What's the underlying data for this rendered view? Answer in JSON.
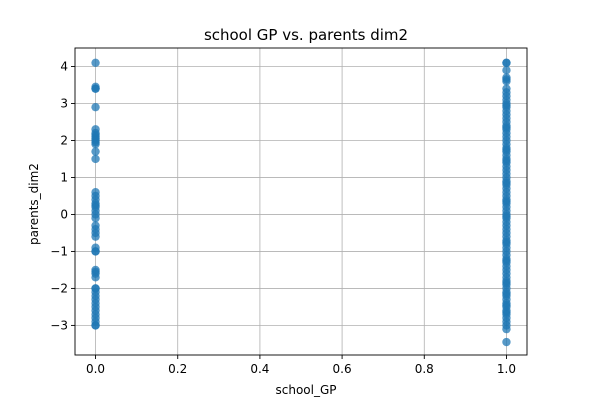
{
  "chart_data": {
    "type": "scatter",
    "title": "school GP vs. parents dim2",
    "xlabel": "school_GP",
    "ylabel": "parents_dim2",
    "xlim": [
      -0.05,
      1.05
    ],
    "ylim": [
      -3.8,
      4.5
    ],
    "xticks": [
      0.0,
      0.2,
      0.4,
      0.6,
      0.8,
      1.0
    ],
    "xtick_labels": [
      "0.0",
      "0.2",
      "0.4",
      "0.6",
      "0.8",
      "1.0"
    ],
    "yticks": [
      -3,
      -2,
      -1,
      0,
      1,
      2,
      3,
      4
    ],
    "ytick_labels": [
      "−3",
      "−2",
      "−1",
      "0",
      "1",
      "2",
      "3",
      "4"
    ],
    "grid": true,
    "marker_color": "#1f77b4",
    "series": [
      {
        "x": [
          0,
          0,
          0,
          0,
          0,
          0,
          0,
          0,
          0,
          0,
          0,
          0,
          0,
          0,
          0,
          0,
          0,
          0,
          0,
          0,
          0,
          0,
          0,
          0,
          0,
          0,
          0,
          0,
          0,
          0,
          0,
          0,
          0,
          0,
          0,
          0,
          0,
          0,
          0,
          0,
          0,
          0,
          0,
          0,
          0,
          0,
          0,
          0,
          1,
          1,
          1,
          1,
          1,
          1,
          1,
          1,
          1,
          1,
          1,
          1,
          1,
          1,
          1,
          1,
          1,
          1,
          1,
          1,
          1,
          1,
          1,
          1,
          1,
          1,
          1,
          1,
          1,
          1,
          1,
          1,
          1,
          1,
          1,
          1,
          1,
          1,
          1,
          1,
          1,
          1,
          1,
          1,
          1,
          1,
          1,
          1,
          1,
          1,
          1,
          1,
          1,
          1,
          1,
          1,
          1,
          1,
          1,
          1,
          1,
          1,
          1,
          1,
          1,
          1,
          1,
          1,
          1,
          1,
          1,
          1,
          1,
          1,
          1,
          1,
          1,
          1,
          1,
          1,
          1,
          1,
          1,
          1,
          1,
          1
        ],
        "y": [
          4.1,
          3.4,
          3.4,
          2.9,
          2.3,
          2.2,
          2.1,
          2.0,
          1.9,
          1.7,
          1.5,
          0.6,
          0.5,
          0.3,
          0.2,
          0.1,
          0.0,
          -0.1,
          -0.4,
          -0.5,
          -0.6,
          -1.0,
          -1.0,
          -1.5,
          -1.6,
          -1.7,
          -2.0,
          -2.1,
          -2.2,
          -2.3,
          -2.4,
          -2.6,
          -2.7,
          -2.8,
          -3.0,
          -3.0,
          0.4,
          1.95,
          2.15,
          -2.5,
          -0.9,
          0.25,
          -0.3,
          -1.55,
          3.45,
          -2.0,
          -2.9,
          2.05,
          4.1,
          4.1,
          3.9,
          3.7,
          3.6,
          3.4,
          3.3,
          3.2,
          3.1,
          3.0,
          2.9,
          2.8,
          2.7,
          2.6,
          2.5,
          2.4,
          2.3,
          2.2,
          2.1,
          2.0,
          1.9,
          1.8,
          1.7,
          1.6,
          1.5,
          1.4,
          1.3,
          1.2,
          1.1,
          1.0,
          0.9,
          0.8,
          0.7,
          0.6,
          0.5,
          0.4,
          0.3,
          0.2,
          0.1,
          0.0,
          -0.1,
          -0.2,
          -0.3,
          -0.4,
          -0.5,
          -0.6,
          -0.7,
          -0.8,
          -0.9,
          -1.0,
          -1.1,
          -1.2,
          -1.3,
          -1.4,
          -1.5,
          -1.6,
          -1.7,
          -1.8,
          -1.9,
          -2.0,
          -2.1,
          -2.2,
          -2.3,
          -2.4,
          -2.5,
          -2.6,
          -2.7,
          -2.8,
          -2.9,
          -3.0,
          -3.1,
          -3.45,
          3.65,
          2.95,
          1.75,
          0.85,
          -0.05,
          -1.25,
          -2.15,
          -2.65,
          2.35,
          1.45,
          0.35,
          -0.75,
          -1.85,
          -2.45
        ]
      }
    ]
  }
}
